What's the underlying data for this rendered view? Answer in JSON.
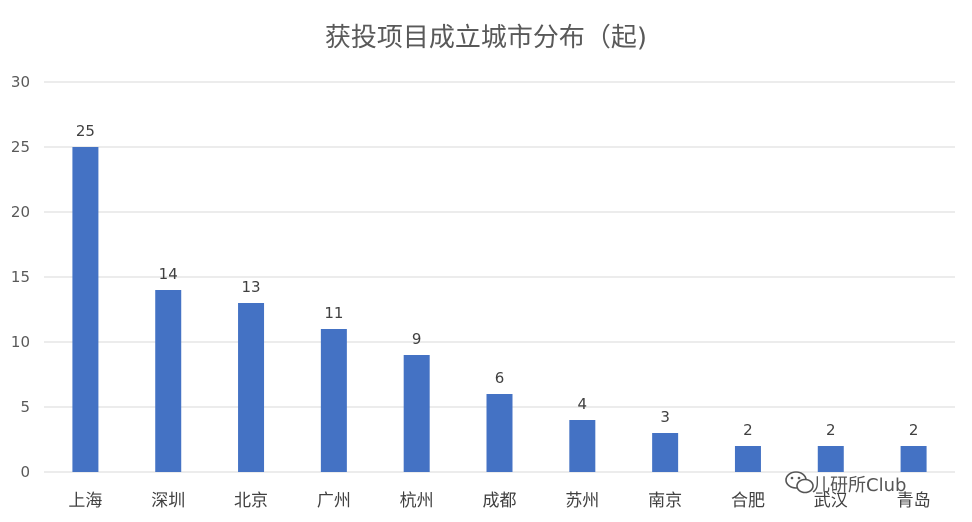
{
  "chart_data": {
    "type": "bar",
    "title": "获投项目成立城市分布（起)",
    "xlabel": "",
    "ylabel": "",
    "categories": [
      "上海",
      "深圳",
      "北京",
      "广州",
      "杭州",
      "成都",
      "苏州",
      "南京",
      "合肥",
      "武汉",
      "青岛"
    ],
    "values": [
      25,
      14,
      13,
      11,
      9,
      6,
      4,
      3,
      2,
      2,
      2
    ],
    "ylim": [
      0,
      30
    ],
    "yticks": [
      0,
      5,
      10,
      15,
      20,
      25,
      30
    ],
    "grid": true,
    "data_labels": true,
    "bar_color": "#4472C4"
  },
  "watermark": {
    "text": "儿研所Club",
    "icon": "wechat-icon"
  }
}
